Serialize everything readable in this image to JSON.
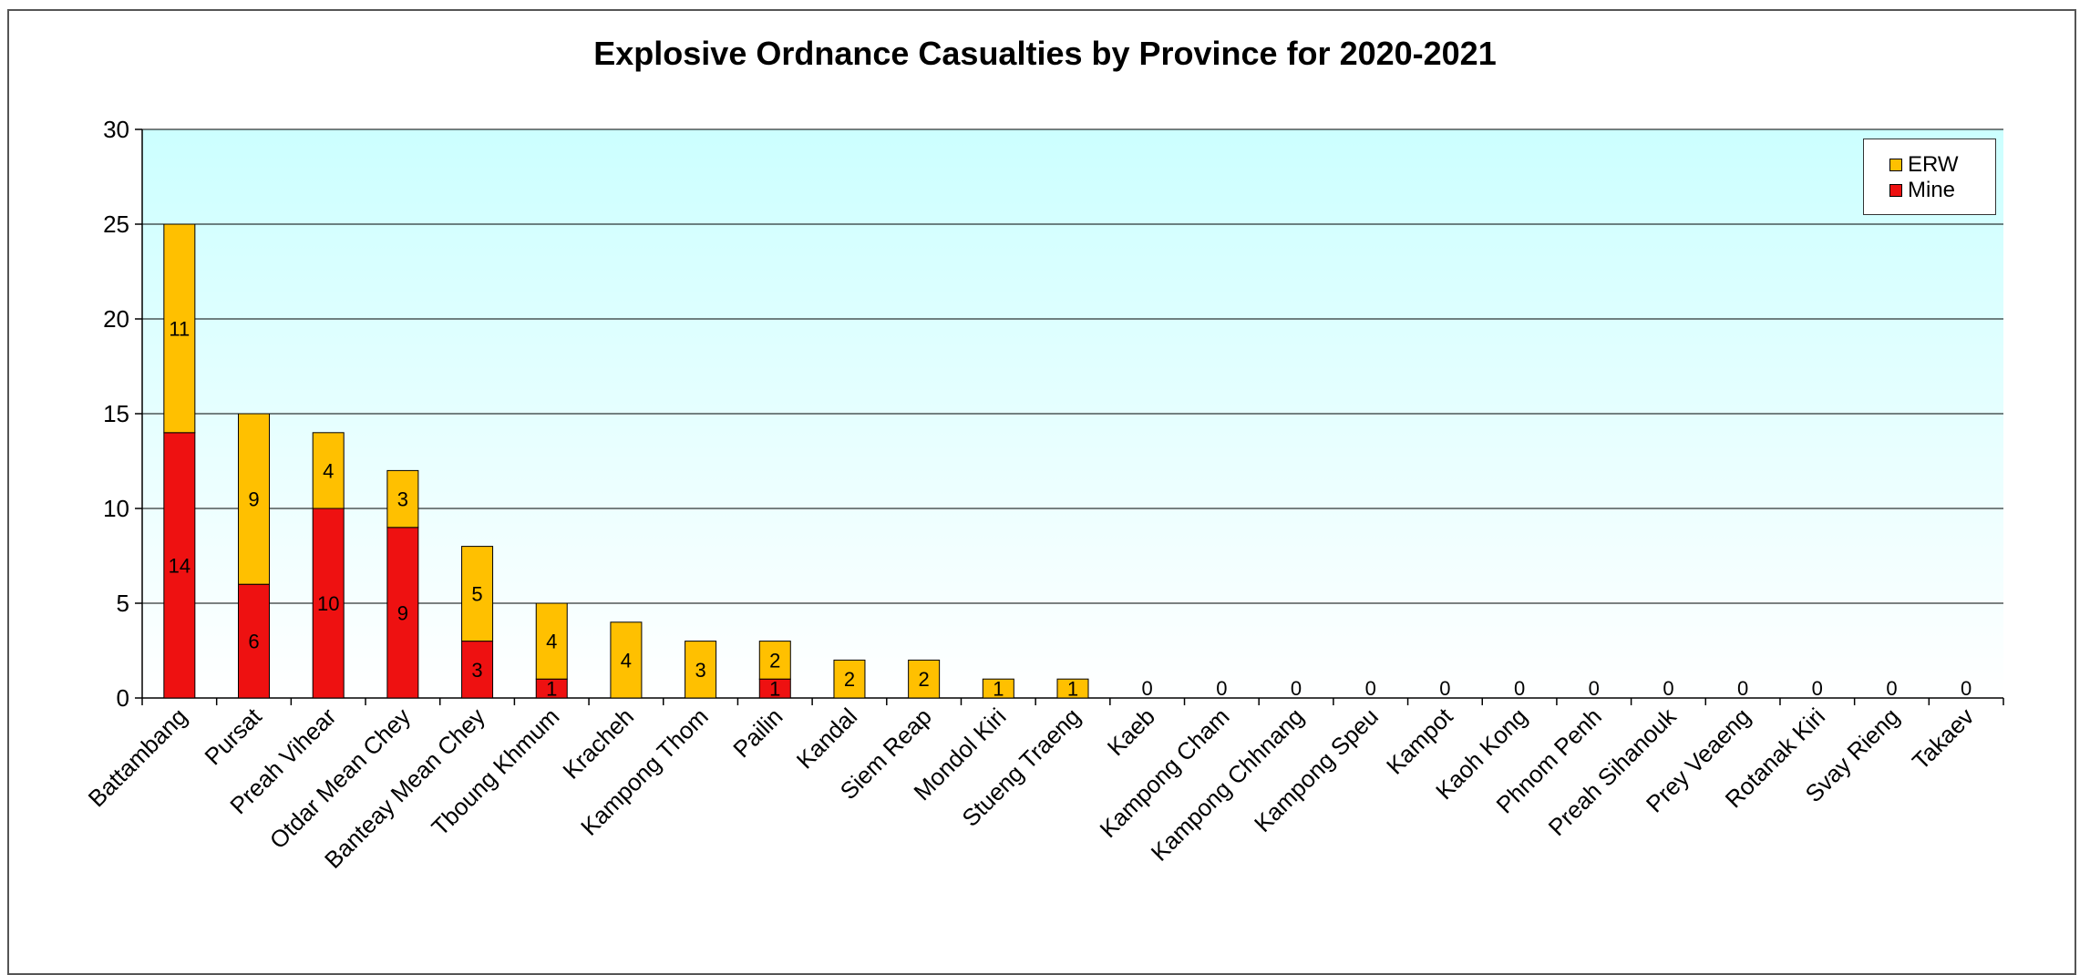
{
  "chart_data": {
    "type": "bar",
    "stacked": true,
    "title": "Explosive Ordnance Casualties by Province for 2020-2021",
    "xlabel": "",
    "ylabel": "",
    "ylim": [
      0,
      30
    ],
    "yticks": [
      "0",
      "5",
      "10",
      "15",
      "20",
      "25",
      "30"
    ],
    "grid": true,
    "legend_position": "top-right",
    "categories": [
      "Battambang",
      "Pursat",
      "Preah Vihear",
      "Otdar Mean Chey",
      "Banteay Mean Chey",
      "Tboung Khmum",
      "Kracheh",
      "Kampong Thom",
      "Pailin",
      "Kandal",
      "Siem Reap",
      "Mondol Kiri",
      "Stueng Traeng",
      "Kaeb",
      "Kampong Cham",
      "Kampong Chhnang",
      "Kampong Speu",
      "Kampot",
      "Kaoh Kong",
      "Phnom Penh",
      "Preah Sihanouk",
      "Prey Veaeng",
      "Rotanak Kiri",
      "Svay Rieng",
      "Takaev"
    ],
    "series": [
      {
        "name": "Mine",
        "color": "#ee1111",
        "values": [
          14,
          6,
          10,
          9,
          3,
          1,
          0,
          0,
          1,
          0,
          0,
          0,
          0,
          0,
          0,
          0,
          0,
          0,
          0,
          0,
          0,
          0,
          0,
          0,
          0
        ]
      },
      {
        "name": "ERW",
        "color": "#ffc000",
        "values": [
          11,
          9,
          4,
          3,
          5,
          4,
          4,
          3,
          2,
          2,
          2,
          1,
          1,
          0,
          0,
          0,
          0,
          0,
          0,
          0,
          0,
          0,
          0,
          0,
          0
        ]
      }
    ],
    "plot_background_top": "#ccffff",
    "plot_background_bottom": "#ffffff"
  },
  "legend": {
    "items": [
      {
        "label": "ERW",
        "color": "#ffc000"
      },
      {
        "label": "Mine",
        "color": "#ee1111"
      }
    ]
  }
}
